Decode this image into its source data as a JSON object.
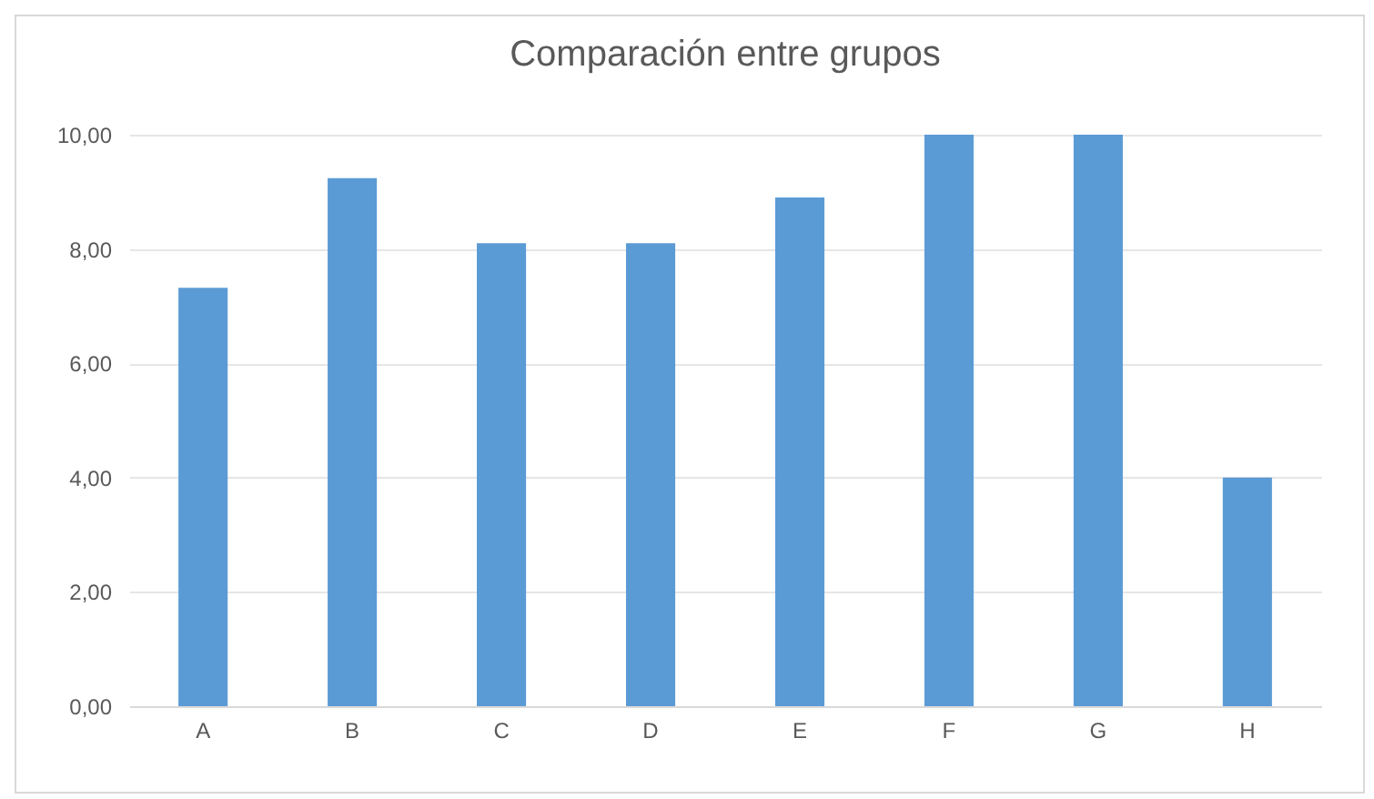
{
  "chart_data": {
    "type": "bar",
    "title": "Comparación entre grupos",
    "categories": [
      "A",
      "B",
      "C",
      "D",
      "E",
      "F",
      "G",
      "H"
    ],
    "values": [
      7.32,
      9.24,
      8.1,
      8.1,
      8.9,
      10,
      10,
      4.0
    ],
    "color": "#5b9bd5",
    "ylim": [
      0,
      10
    ],
    "yticks": [
      {
        "value": 0,
        "label": "0,00"
      },
      {
        "value": 2,
        "label": "2,00"
      },
      {
        "value": 4,
        "label": "4,00"
      },
      {
        "value": 6,
        "label": "6,00"
      },
      {
        "value": 8,
        "label": "8,00"
      },
      {
        "value": 10,
        "label": "10,00"
      }
    ],
    "grid": "y"
  }
}
